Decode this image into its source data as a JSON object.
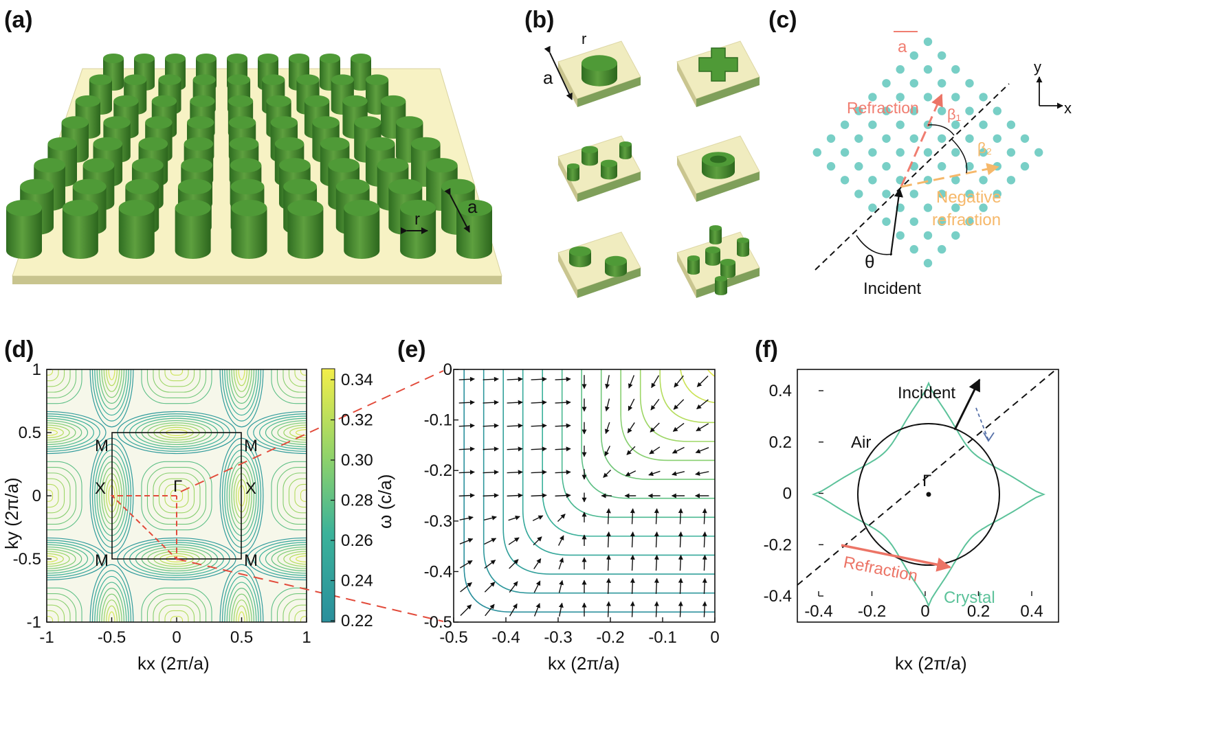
{
  "panels": {
    "a": {
      "label": "(a)",
      "r_label": "r",
      "a_label": "a"
    },
    "b": {
      "label": "(b)",
      "r_label": "r",
      "a_label": "a"
    },
    "c": {
      "label": "(c)",
      "a_label": "a",
      "refraction": "Refraction",
      "beta1": "β₁",
      "beta2": "β₂",
      "negative1": "Negative",
      "negative2": "refraction",
      "theta": "θ",
      "incident": "Incident",
      "axis_y": "y",
      "axis_x": "x",
      "colors": {
        "dots": "#78cfc6",
        "refraction": "#f07d70",
        "negative": "#f6b86a"
      }
    },
    "d": {
      "label": "(d)",
      "xlabel": "kx (2π/a)",
      "ylabel": "ky (2π/a)",
      "cbar_label": "ω (c/a)",
      "xticks": [
        "-1",
        "-0.5",
        "0",
        "0.5",
        "1"
      ],
      "yticks": [
        "1",
        "0.5",
        "0",
        "-0.5",
        "-1"
      ],
      "cbar_ticks": [
        "0.34",
        "0.32",
        "0.30",
        "0.28",
        "0.26",
        "0.24",
        "0.22"
      ],
      "points": {
        "M": "M",
        "X": "X",
        "G": "Γ"
      },
      "colors": {
        "low": "#2a8f9c",
        "high": "#f3ee4a"
      }
    },
    "e": {
      "label": "(e)",
      "xlabel": "kx (2π/a)",
      "xticks": [
        "-0.5",
        "-0.4",
        "-0.3",
        "-0.2",
        "-0.1",
        "0"
      ],
      "yticks": [
        "0",
        "-0.1",
        "-0.2",
        "-0.3",
        "-0.4",
        "-0.5"
      ]
    },
    "f": {
      "label": "(f)",
      "xlabel": "kx (2π/a)",
      "xticks": [
        "-0.4",
        "-0.2",
        "0",
        "0.2",
        "0.4"
      ],
      "yticks": [
        "0.4",
        "0.2",
        "0",
        "-0.2",
        "-0.4"
      ],
      "incident": "Incident",
      "air": "Air",
      "gamma": "Γ",
      "refraction": "Refraction",
      "crystal": "Crystal",
      "colors": {
        "crystal": "#5cc29a",
        "refraction": "#ec7466",
        "reflect": "#5570a8"
      }
    }
  }
}
